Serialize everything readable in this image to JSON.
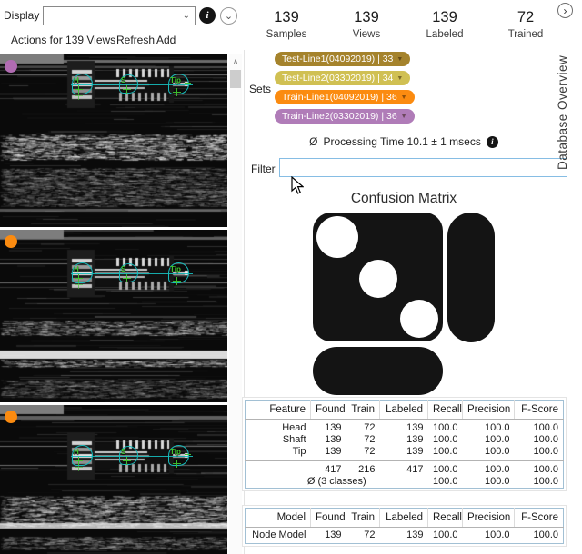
{
  "toolbar": {
    "display_label": "Display",
    "display_value": "",
    "actions_label": "Actions for 139 Views",
    "refresh_label": "Refresh",
    "add_label": "Add"
  },
  "stats": [
    {
      "value": "139",
      "label": "Samples"
    },
    {
      "value": "139",
      "label": "Views"
    },
    {
      "value": "139",
      "label": "Labeled"
    },
    {
      "value": "72",
      "label": "Trained"
    }
  ],
  "sets": {
    "label": "Sets",
    "tags": [
      {
        "text": "Test-Line1(04092019) | 33",
        "color": "#a5832c"
      },
      {
        "text": "Test-Line2(03302019) | 34",
        "color": "#d0c053"
      },
      {
        "text": "Train-Line1(04092019) | 36",
        "color": "#fb8b10"
      },
      {
        "text": "Train-Line2(03302019) | 36",
        "color": "#b07cb8"
      }
    ]
  },
  "processing": {
    "avg_symbol": "Ø",
    "text": "Processing Time 10.1 ± 1 msecs"
  },
  "filter": {
    "label": "Filter",
    "value": ""
  },
  "confusion": {
    "title": "Confusion Matrix"
  },
  "feature_table": {
    "headers": [
      "Feature",
      "Found",
      "Train",
      "Labeled",
      "Recall",
      "Precision",
      "F-Score"
    ],
    "rows": [
      [
        "Head",
        "139",
        "72",
        "139",
        "100.0",
        "100.0",
        "100.0"
      ],
      [
        "Shaft",
        "139",
        "72",
        "139",
        "100.0",
        "100.0",
        "100.0"
      ],
      [
        "Tip",
        "139",
        "72",
        "139",
        "100.0",
        "100.0",
        "100.0"
      ]
    ],
    "sum_row": [
      "",
      "417",
      "216",
      "417",
      "100.0",
      "100.0",
      "100.0"
    ],
    "avg_row_label": "Ø (3 classes)",
    "avg_row": [
      "100.0",
      "100.0",
      "100.0"
    ]
  },
  "model_table": {
    "headers": [
      "Model",
      "Found",
      "Train",
      "Labeled",
      "Recall",
      "Precision",
      "F-Score"
    ],
    "rows": [
      [
        "Node Model",
        "139",
        "72",
        "139",
        "100.0",
        "100.0",
        "100.0"
      ]
    ]
  },
  "side_tab": {
    "title": "Database Overview"
  },
  "images": [
    {
      "marker_color": "#b16cb2",
      "labels": [
        "H",
        "S",
        "Tip"
      ]
    },
    {
      "marker_color": "#fb8b10",
      "labels": [
        "H",
        "S",
        "Tip"
      ]
    },
    {
      "marker_color": "#fb8b10",
      "labels": [
        "H",
        "S",
        "Tip"
      ]
    }
  ],
  "icons": {
    "info_glyph": "i",
    "combo_chevron": "⌄",
    "collapse_chevron": "⌄",
    "tab_chevron": "›",
    "scroll_up_glyph": "∧",
    "tag_dropdown_glyph": "▼"
  },
  "colors": {
    "annotation_cyan": "#17bcbc",
    "annotation_green": "#3fc32f",
    "matrix_black": "#141414",
    "table_border": "#a2c0d4",
    "filter_border": "#86bde4"
  }
}
